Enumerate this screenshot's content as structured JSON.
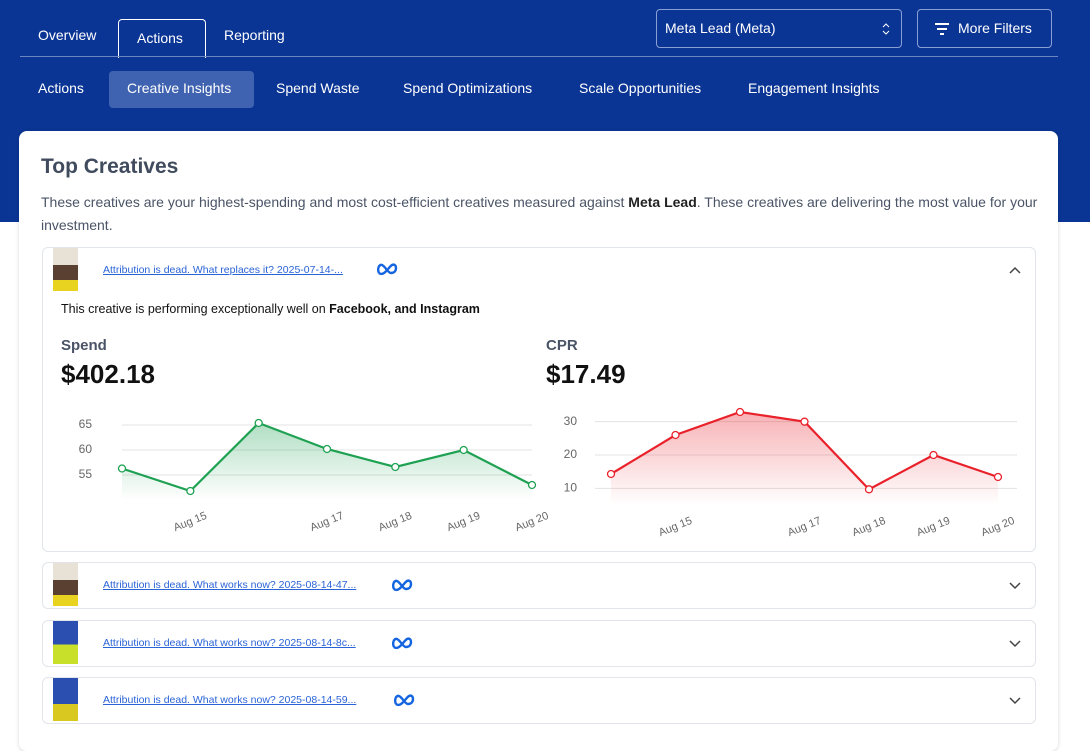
{
  "tabs": [
    "Overview",
    "Actions",
    "Reporting"
  ],
  "account_select": "Meta Lead (Meta)",
  "more_filters": "More Filters",
  "subtabs": [
    "Actions",
    "Creative Insights",
    "Spend Waste",
    "Spend Optimizations",
    "Scale Opportunities",
    "Engagement Insights"
  ],
  "card": {
    "title": "Top Creatives",
    "description": [
      "These creatives are your highest-spending and most cost-efficient creatives measured against ",
      "Meta Lead",
      ". These creatives are delivering the most value for your investment."
    ]
  },
  "creatives": [
    {
      "link": "Attribution is dead. What replaces it? 2025-07-14-...",
      "performance": [
        "This creative is performing exceptionally well on ",
        "Facebook, and Instagram"
      ]
    },
    {
      "link": "Attribution is dead. What works now? 2025-08-14-47..."
    },
    {
      "link": "Attribution is dead. What works now? 2025-08-14-8c..."
    },
    {
      "link": "Attribution is dead. What works now? 2025-08-14-59..."
    }
  ],
  "chart_data": [
    {
      "type": "line",
      "title": "Spend",
      "summary": "$402.18",
      "color": "#1ea152",
      "categories": [
        null,
        "Aug 15",
        null,
        "Aug 17",
        "Aug 18",
        "Aug 19",
        "Aug 20"
      ],
      "values": [
        56.3,
        51.8,
        65.4,
        60.2,
        56.6,
        60,
        53
      ],
      "ylim": [
        50,
        68
      ],
      "yticks": [
        55,
        60,
        65
      ],
      "grid": true
    },
    {
      "type": "line",
      "title": "CPR",
      "summary": "$17.49",
      "color": "#e9212b",
      "categories": [
        null,
        "Aug 15",
        null,
        "Aug 17",
        "Aug 18",
        "Aug 19",
        "Aug 20"
      ],
      "values": [
        14.3,
        26,
        32.9,
        30,
        9.7,
        20,
        13.4
      ],
      "ylim": [
        5,
        35
      ],
      "yticks": [
        10,
        20,
        30
      ],
      "grid": true
    }
  ]
}
